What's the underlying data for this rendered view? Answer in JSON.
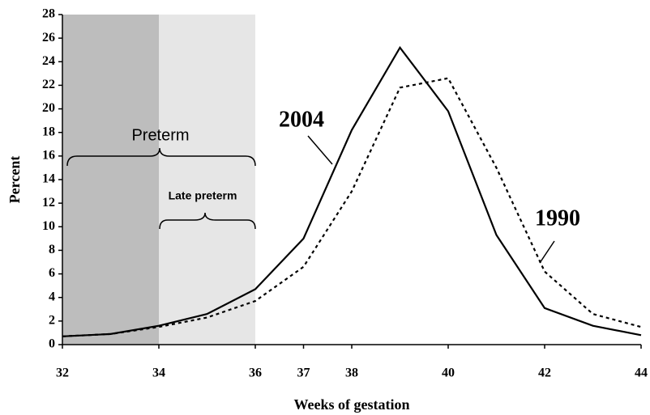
{
  "chart_data": {
    "type": "line",
    "x": [
      32,
      33,
      34,
      35,
      36,
      37,
      38,
      39,
      40,
      41,
      42,
      43,
      44
    ],
    "series": [
      {
        "name": "2004",
        "color": "#000000",
        "dash": "solid",
        "values": [
          0.7,
          0.9,
          1.6,
          2.6,
          4.7,
          9.0,
          18.2,
          25.2,
          19.8,
          9.3,
          3.1,
          1.6,
          0.8
        ]
      },
      {
        "name": "1990",
        "color": "#000000",
        "dash": "dotted",
        "values": [
          0.7,
          0.9,
          1.5,
          2.3,
          3.7,
          6.6,
          13.0,
          21.8,
          22.6,
          15.0,
          6.2,
          2.6,
          1.5
        ]
      }
    ],
    "shaded_regions": [
      {
        "from": 32,
        "to": 34,
        "color": "#bdbdbd"
      },
      {
        "from": 34,
        "to": 36,
        "color": "#e6e6e6"
      }
    ],
    "annotations": [
      "Preterm",
      "Late preterm"
    ],
    "xlabel": "Weeks of gestation",
    "ylabel": "Percent",
    "xlim": [
      32,
      44
    ],
    "xticks": [
      32,
      34,
      36,
      37,
      38,
      40,
      42,
      44
    ],
    "ylim": [
      0,
      28
    ],
    "yticks": [
      0,
      2,
      4,
      6,
      8,
      10,
      12,
      14,
      16,
      18,
      20,
      22,
      24,
      26,
      28
    ]
  }
}
